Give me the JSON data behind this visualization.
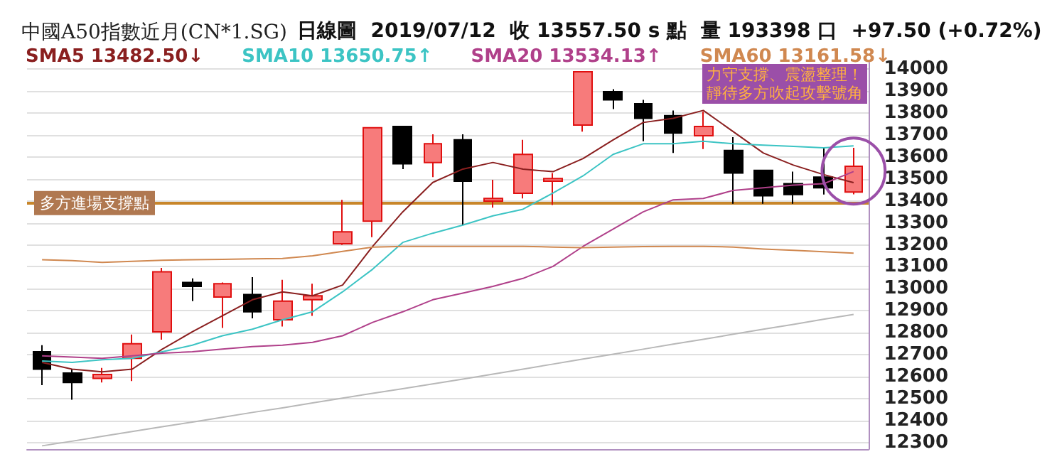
{
  "chart_data": {
    "type": "candlestick",
    "title": "中國A50指數近月(CN*1.SG)",
    "subtitle": "日線圖  2019/07/12  收 13557.50 s 點  量 193398 口  +97.50 (+0.72%)",
    "categories": [
      null,
      null,
      null,
      null,
      null,
      null,
      null,
      null,
      null,
      null,
      null,
      null,
      null,
      null,
      null,
      null,
      null,
      null,
      null,
      null,
      null,
      null,
      null,
      null,
      null,
      null,
      null,
      null
    ],
    "ohlc": [
      [
        12713,
        12743,
        12561,
        12634
      ],
      [
        12616,
        12634,
        12495,
        12573
      ],
      [
        12592,
        12640,
        12573,
        12610
      ],
      [
        12683,
        12792,
        12580,
        12750
      ],
      [
        12804,
        13095,
        12768,
        13077
      ],
      [
        13029,
        13047,
        12944,
        13011
      ],
      [
        12962,
        13029,
        12822,
        13023
      ],
      [
        12974,
        13053,
        12865,
        12895
      ],
      [
        12859,
        13041,
        12828,
        12944
      ],
      [
        12950,
        13023,
        12877,
        12968
      ],
      [
        13205,
        13405,
        13199,
        13259
      ],
      [
        13308,
        13733,
        13235,
        13733
      ],
      [
        13739,
        13739,
        13545,
        13569
      ],
      [
        13575,
        13703,
        13508,
        13660
      ],
      [
        13678,
        13703,
        13290,
        13490
      ],
      [
        13399,
        13496,
        13369,
        13411
      ],
      [
        13435,
        13678,
        13411,
        13612
      ],
      [
        13490,
        13527,
        13381,
        13502
      ],
      [
        13745,
        13988,
        13715,
        13988
      ],
      [
        13897,
        13909,
        13818,
        13860
      ],
      [
        13842,
        13860,
        13672,
        13776
      ],
      [
        13788,
        13812,
        13618,
        13709
      ],
      [
        13697,
        13806,
        13636,
        13739
      ],
      [
        13630,
        13690,
        13387,
        13527
      ],
      [
        13539,
        13539,
        13387,
        13423
      ],
      [
        13478,
        13533,
        13387,
        13429
      ],
      [
        13508,
        13642,
        13429,
        13460
      ],
      [
        13440,
        13642,
        13430,
        13557.5
      ]
    ],
    "colors": [
      "#000000",
      "#000000",
      "#f77b7b",
      "#f77b7b",
      "#f77b7b",
      "#000000",
      "#f77b7b",
      "#000000",
      "#f77b7b",
      "#f77b7b",
      "#f77b7b",
      "#f77b7b",
      "#000000",
      "#f77b7b",
      "#000000",
      "#f77b7b",
      "#f77b7b",
      "#f77b7b",
      "#f77b7b",
      "#000000",
      "#000000",
      "#000000",
      "#f77b7b",
      "#000000",
      "#000000",
      "#000000",
      "#000000",
      "#f77b7b"
    ],
    "series": [
      {
        "type": "line",
        "name": "SMA5 13482.50↓",
        "color": "#8a1f1f",
        "values": [
          12665,
          12634,
          12622,
          12634,
          12725,
          12804,
          12877,
          12950,
          12986,
          12968,
          13017,
          13193,
          13350,
          13484,
          13545,
          13575,
          13545,
          13533,
          13593,
          13678,
          13757,
          13776,
          13812,
          13715,
          13618,
          13563,
          13520,
          13483
        ]
      },
      {
        "type": "line",
        "name": "SMA10 13650.75↑",
        "color": "#3cc4c4",
        "values": [
          12671,
          12665,
          12677,
          12683,
          12713,
          12743,
          12786,
          12816,
          12859,
          12895,
          12986,
          13089,
          13211,
          13253,
          13290,
          13332,
          13362,
          13436,
          13514,
          13612,
          13660,
          13660,
          13672,
          13660,
          13654,
          13648,
          13642,
          13651
        ]
      },
      {
        "type": "line",
        "name": "SMA20 13534.13↑",
        "color": "#b0408a",
        "values": [
          12695,
          12689,
          12683,
          12695,
          12707,
          12713,
          12725,
          12737,
          12743,
          12756,
          12786,
          12847,
          12895,
          12950,
          12980,
          13011,
          13047,
          13102,
          13193,
          13272,
          13350,
          13405,
          13411,
          13448,
          13460,
          13472,
          13478,
          13534
        ]
      },
      {
        "type": "line",
        "name": "SMA60 13161.58↓",
        "color": "#d08850",
        "values": [
          13132,
          13128,
          13120,
          13125,
          13130,
          13132,
          13134,
          13136,
          13138,
          13150,
          13170,
          13190,
          13193,
          13193,
          13193,
          13193,
          13193,
          13190,
          13187,
          13190,
          13192,
          13193,
          13193,
          13190,
          13181,
          13175,
          13169,
          13162
        ]
      },
      {
        "type": "line",
        "color": "#b8b8b8",
        "values": [
          12285,
          12306,
          12328,
          12350,
          12372,
          12393,
          12415,
          12437,
          12458,
          12480,
          12502,
          12524,
          12545,
          12567,
          12589,
          12611,
          12634,
          12657,
          12680,
          12702,
          12725,
          12748,
          12770,
          12793,
          12816,
          12838,
          12861,
          12883
        ]
      }
    ],
    "ylim": [
      12270,
      14030
    ],
    "yticks": [
      12300,
      12400,
      12500,
      12600,
      12700,
      12800,
      12900,
      13000,
      13100,
      13200,
      13300,
      13400,
      13500,
      13600,
      13700,
      13800,
      13900,
      14000
    ],
    "tick_labels": "y",
    "grid": "y",
    "legend": "top left",
    "marker": "none",
    "ref_lines": [
      {
        "axis": "y",
        "value": 13390,
        "label": "多方進場支撐點",
        "color": "#c8862a"
      }
    ],
    "annotations": [
      "力守支撐、震盪整理！",
      "靜待多方吹起攻擊號角"
    ]
  }
}
